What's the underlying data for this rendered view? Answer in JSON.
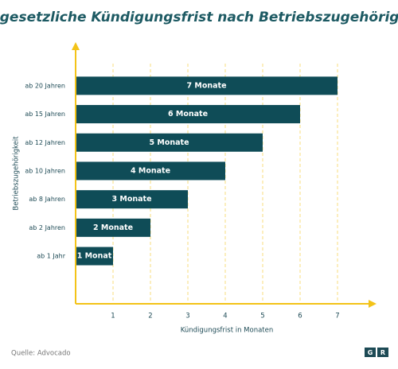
{
  "chart_data": {
    "type": "bar",
    "orientation": "horizontal",
    "title": "Die gesetzliche Kündigungsfrist nach Betriebszugehörigkeit",
    "categories": [
      "ab 20 Jahren",
      "ab 15 Jahren",
      "ab 12 Jahren",
      "ab 10 Jahren",
      "ab 8 Jahren",
      "ab 2 Jahren",
      "ab 1 Jahr"
    ],
    "values": [
      7,
      6,
      5,
      4,
      3,
      2,
      1
    ],
    "value_labels": [
      "7 Monate",
      "6 Monate",
      "5 Monate",
      "4 Monate",
      "3 Monate",
      "2 Monate",
      "1 Monat"
    ],
    "color": "#0f4c57",
    "axis_color": "#f3c318",
    "xlim": [
      0,
      8
    ],
    "xticks": [
      1,
      2,
      3,
      4,
      5,
      6,
      7
    ],
    "grid": true,
    "xlabel": "Kündigungsfrist in Monaten",
    "ylabel": "Betriebszugehörigkeit",
    "source": "Quelle: Advocado",
    "logo": [
      "G",
      "R"
    ]
  }
}
